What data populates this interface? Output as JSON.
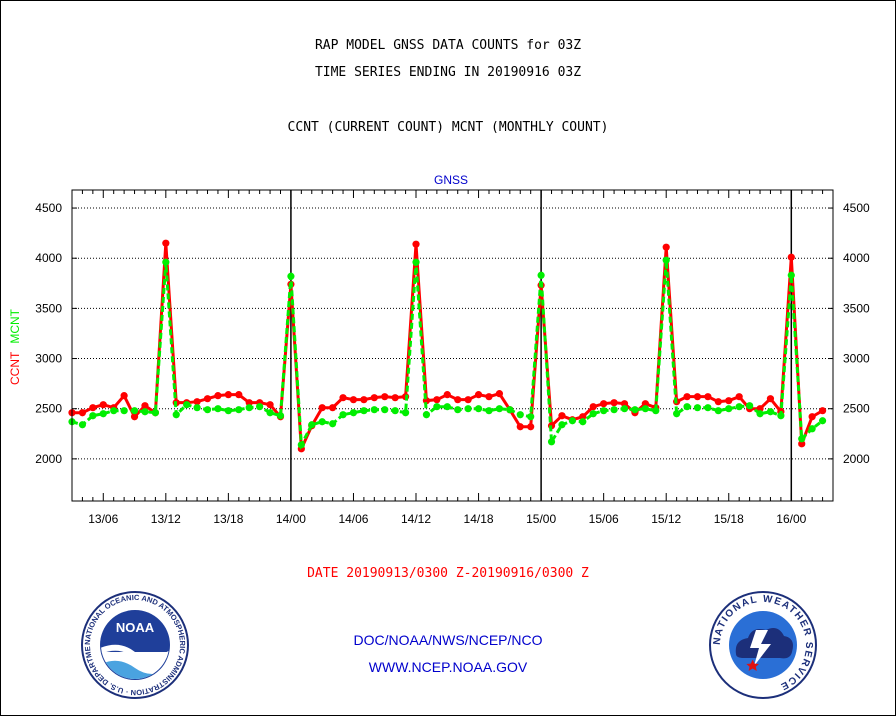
{
  "header": {
    "title_line1": "RAP MODEL GNSS DATA COUNTS for 03Z",
    "title_line2": "TIME SERIES ENDING IN 20190916 03Z",
    "subtitle": "CCNT (CURRENT COUNT) MCNT (MONTHLY COUNT)"
  },
  "footer": {
    "date_range": "DATE 20190913/0300 Z-20190916/0300 Z",
    "org": "DOC/NOAA/NWS/NCEP/NCO",
    "url": "WWW.NCEP.NOAA.GOV"
  },
  "logos": {
    "noaa": {
      "label": "NOAA",
      "ring_text": "NATIONAL OCEANIC AND ATMOSPHERIC ADMINISTRATION · U.S. DEPARTMENT OF COMMERCE"
    },
    "nws": {
      "ring_text": "NATIONAL WEATHER SERVICE"
    }
  },
  "colors": {
    "ccnt": "#ff0000",
    "mcnt": "#00ee00",
    "title": "#000000",
    "series_label": "#0000cc",
    "date": "#ff0000",
    "footer": "#0000cc"
  },
  "chart_data": {
    "type": "line",
    "title": "GNSS",
    "ylabel_left": [
      "CCNT",
      "MCNT"
    ],
    "ylim": [
      1580,
      4680
    ],
    "yticks": [
      2000,
      2500,
      3000,
      3500,
      4000,
      4500
    ],
    "x_start_hour": 0,
    "x_end_hour": 73,
    "xticks": [
      {
        "hour": 3,
        "label": "13/06"
      },
      {
        "hour": 9,
        "label": "13/12"
      },
      {
        "hour": 15,
        "label": "13/18"
      },
      {
        "hour": 21,
        "label": "14/00"
      },
      {
        "hour": 27,
        "label": "14/06"
      },
      {
        "hour": 33,
        "label": "14/12"
      },
      {
        "hour": 39,
        "label": "14/18"
      },
      {
        "hour": 45,
        "label": "15/00"
      },
      {
        "hour": 51,
        "label": "15/06"
      },
      {
        "hour": 57,
        "label": "15/12"
      },
      {
        "hour": 63,
        "label": "15/18"
      },
      {
        "hour": 69,
        "label": "16/00"
      }
    ],
    "day_boundaries": [
      21,
      45,
      69
    ],
    "grid": true,
    "series": [
      {
        "name": "CCNT",
        "color": "#ff0000",
        "values": [
          2460,
          2460,
          2510,
          2540,
          2510,
          2630,
          2420,
          2530,
          2460,
          4150,
          2560,
          2560,
          2570,
          2600,
          2630,
          2640,
          2640,
          2560,
          2560,
          2540,
          2420,
          3740,
          2100,
          2330,
          2510,
          2510,
          2610,
          2590,
          2590,
          2610,
          2620,
          2610,
          2620,
          4140,
          2580,
          2590,
          2640,
          2590,
          2590,
          2640,
          2620,
          2650,
          2490,
          2320,
          2320,
          3730,
          2330,
          2430,
          2390,
          2420,
          2520,
          2550,
          2560,
          2550,
          2460,
          2550,
          2510,
          4110,
          2570,
          2620,
          2620,
          2620,
          2570,
          2580,
          2620,
          2500,
          2500,
          2600,
          2470,
          4010,
          2150,
          2420,
          2480
        ]
      },
      {
        "name": "MCNT",
        "color": "#00ee00",
        "values": [
          2370,
          2340,
          2430,
          2450,
          2480,
          2480,
          2480,
          2470,
          2460,
          3960,
          2440,
          2540,
          2510,
          2490,
          2500,
          2480,
          2490,
          2510,
          2520,
          2460,
          2430,
          3820,
          2140,
          2340,
          2370,
          2350,
          2440,
          2460,
          2480,
          2490,
          2490,
          2480,
          2460,
          3960,
          2440,
          2520,
          2520,
          2490,
          2500,
          2500,
          2480,
          2500,
          2490,
          2440,
          2420,
          3830,
          2170,
          2340,
          2380,
          2370,
          2450,
          2480,
          2490,
          2500,
          2490,
          2500,
          2480,
          3980,
          2450,
          2520,
          2510,
          2510,
          2480,
          2500,
          2520,
          2530,
          2450,
          2470,
          2430,
          3830,
          2200,
          2300,
          2380
        ]
      }
    ]
  }
}
